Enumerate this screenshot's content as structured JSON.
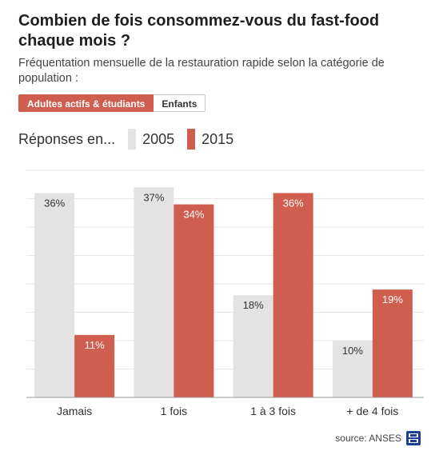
{
  "header": {
    "title": "Combien de fois consommez-vous du fast-food chaque mois ?",
    "subtitle": "Fréquentation mensuelle de la restauration rapide selon la catégorie de population :"
  },
  "tabs": [
    {
      "label": "Adultes actifs & étudiants",
      "active": true
    },
    {
      "label": "Enfants",
      "active": false
    }
  ],
  "legend": {
    "prefix": "Réponses en...",
    "items": [
      {
        "label": "2005",
        "color": "#e3e3e3"
      },
      {
        "label": "2015",
        "color": "#d05e4e"
      }
    ]
  },
  "chart_data": {
    "type": "bar",
    "categories": [
      "Jamais",
      "1 fois",
      "1 à 3 fois",
      "+ de 4 fois"
    ],
    "series": [
      {
        "name": "2005",
        "values": [
          36,
          37,
          18,
          10
        ],
        "labels": [
          "36%",
          "37%",
          "18%",
          "10%"
        ],
        "color": "#e3e3e3"
      },
      {
        "name": "2015",
        "values": [
          11,
          34,
          36,
          19
        ],
        "labels": [
          "11%",
          "34%",
          "36%",
          "19%"
        ],
        "color": "#d05e4e"
      }
    ],
    "ylim": [
      0,
      40
    ],
    "grid": true
  },
  "footer": {
    "source": "source: ANSES",
    "logo_icon": "bfm-tv-logo"
  }
}
